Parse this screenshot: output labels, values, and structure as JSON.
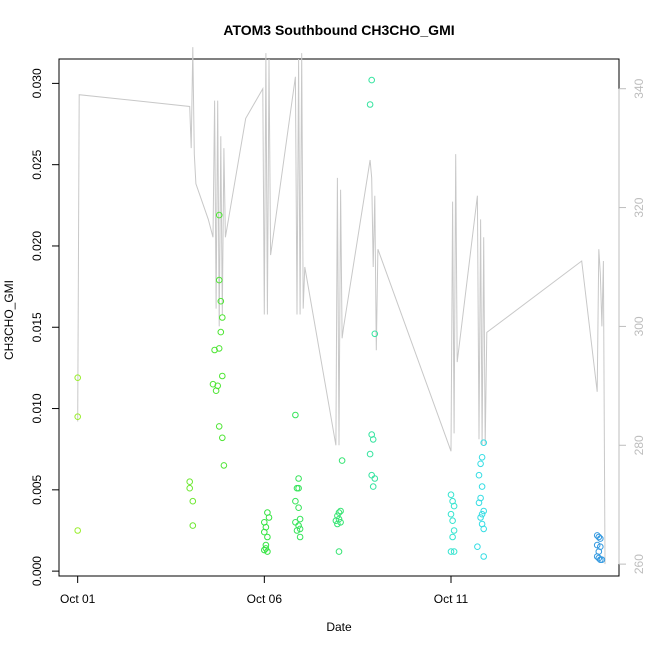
{
  "chart_data": {
    "type": "scatter",
    "title": "ATOM3 Southbound CH3CHO_GMI",
    "xlabel": "Date",
    "ylabel": "CH3CHO_GMI",
    "xlim": [
      "2017-09-30T12:00",
      "2017-10-15T12:00"
    ],
    "ylim": [
      -0.0003,
      0.0315
    ],
    "y2lim": [
      258,
      345
    ],
    "x_ticks": [
      {
        "value": "2017-10-01T00:00",
        "label": "Oct 01"
      },
      {
        "value": "2017-10-06T00:00",
        "label": "Oct 06"
      },
      {
        "value": "2017-10-11T00:00",
        "label": "Oct 11"
      }
    ],
    "y_ticks": [
      {
        "value": 0.0,
        "label": "0.000"
      },
      {
        "value": 0.005,
        "label": "0.005"
      },
      {
        "value": 0.01,
        "label": "0.010"
      },
      {
        "value": 0.015,
        "label": "0.015"
      },
      {
        "value": 0.02,
        "label": "0.020"
      },
      {
        "value": 0.025,
        "label": "0.025"
      },
      {
        "value": 0.03,
        "label": "0.030"
      }
    ],
    "y2_ticks": [
      {
        "value": 260,
        "label": "260"
      },
      {
        "value": 280,
        "label": "280"
      },
      {
        "value": 300,
        "label": "300"
      },
      {
        "value": 320,
        "label": "320"
      },
      {
        "value": 340,
        "label": "340"
      }
    ],
    "colors": {
      "line": "#c8c8c8",
      "axis": "#000000",
      "right_axis": "#bdbdbd"
    },
    "points": [
      {
        "x": "2017-10-01T00:00",
        "y": 0.0119,
        "color": "#9aee2e"
      },
      {
        "x": "2017-10-01T00:00",
        "y": 0.0095,
        "color": "#9aee2e"
      },
      {
        "x": "2017-10-01T00:00",
        "y": 0.0025,
        "color": "#9aee2e"
      },
      {
        "x": "2017-10-04T00:00",
        "y": 0.0055,
        "color": "#6ee832"
      },
      {
        "x": "2017-10-04T00:00",
        "y": 0.0051,
        "color": "#6ee832"
      },
      {
        "x": "2017-10-04T02:00",
        "y": 0.0043,
        "color": "#6ee832"
      },
      {
        "x": "2017-10-04T02:00",
        "y": 0.0028,
        "color": "#6ee832"
      },
      {
        "x": "2017-10-04T19:00",
        "y": 0.0219,
        "color": "#4ee534"
      },
      {
        "x": "2017-10-04T19:00",
        "y": 0.0179,
        "color": "#4ee534"
      },
      {
        "x": "2017-10-04T20:00",
        "y": 0.0166,
        "color": "#4ee534"
      },
      {
        "x": "2017-10-04T21:00",
        "y": 0.0156,
        "color": "#4ee534"
      },
      {
        "x": "2017-10-04T20:00",
        "y": 0.0147,
        "color": "#4ee534"
      },
      {
        "x": "2017-10-04T19:00",
        "y": 0.0137,
        "color": "#4ee534"
      },
      {
        "x": "2017-10-04T16:00",
        "y": 0.0136,
        "color": "#4ee534"
      },
      {
        "x": "2017-10-04T21:00",
        "y": 0.012,
        "color": "#4ee534"
      },
      {
        "x": "2017-10-04T15:00",
        "y": 0.0115,
        "color": "#4ee534"
      },
      {
        "x": "2017-10-04T17:00",
        "y": 0.0111,
        "color": "#4ee534"
      },
      {
        "x": "2017-10-04T18:00",
        "y": 0.0114,
        "color": "#4ee534"
      },
      {
        "x": "2017-10-04T19:00",
        "y": 0.0089,
        "color": "#4ee534"
      },
      {
        "x": "2017-10-04T21:00",
        "y": 0.0082,
        "color": "#4ee534"
      },
      {
        "x": "2017-10-04T22:00",
        "y": 0.0065,
        "color": "#4ee534"
      },
      {
        "x": "2017-10-06T02:00",
        "y": 0.0036,
        "color": "#36e443"
      },
      {
        "x": "2017-10-06T03:00",
        "y": 0.0033,
        "color": "#36e443"
      },
      {
        "x": "2017-10-06T00:00",
        "y": 0.003,
        "color": "#36e443"
      },
      {
        "x": "2017-10-06T01:00",
        "y": 0.0027,
        "color": "#36e443"
      },
      {
        "x": "2017-10-06T00:00",
        "y": 0.0024,
        "color": "#36e443"
      },
      {
        "x": "2017-10-06T02:00",
        "y": 0.0021,
        "color": "#36e443"
      },
      {
        "x": "2017-10-06T01:00",
        "y": 0.0016,
        "color": "#36e443"
      },
      {
        "x": "2017-10-06T00:00",
        "y": 0.0013,
        "color": "#36e443"
      },
      {
        "x": "2017-10-06T02:00",
        "y": 0.0012,
        "color": "#36e443"
      },
      {
        "x": "2017-10-06T01:00",
        "y": 0.0014,
        "color": "#36e443"
      },
      {
        "x": "2017-10-06T20:00",
        "y": 0.0096,
        "color": "#36e45a"
      },
      {
        "x": "2017-10-06T22:00",
        "y": 0.0057,
        "color": "#36e45a"
      },
      {
        "x": "2017-10-06T21:00",
        "y": 0.0051,
        "color": "#36e45a"
      },
      {
        "x": "2017-10-06T22:00",
        "y": 0.0051,
        "color": "#36e45a"
      },
      {
        "x": "2017-10-06T20:00",
        "y": 0.0043,
        "color": "#36e45a"
      },
      {
        "x": "2017-10-06T22:00",
        "y": 0.0039,
        "color": "#36e45a"
      },
      {
        "x": "2017-10-06T23:00",
        "y": 0.0032,
        "color": "#36e45a"
      },
      {
        "x": "2017-10-06T20:00",
        "y": 0.003,
        "color": "#36e45a"
      },
      {
        "x": "2017-10-06T22:00",
        "y": 0.0028,
        "color": "#36e45a"
      },
      {
        "x": "2017-10-06T21:00",
        "y": 0.0025,
        "color": "#36e45a"
      },
      {
        "x": "2017-10-06T23:00",
        "y": 0.0026,
        "color": "#36e45a"
      },
      {
        "x": "2017-10-06T23:00",
        "y": 0.0021,
        "color": "#36e45a"
      },
      {
        "x": "2017-10-08T00:00",
        "y": 0.0036,
        "color": "#36e473"
      },
      {
        "x": "2017-10-08T01:00",
        "y": 0.0037,
        "color": "#36e473"
      },
      {
        "x": "2017-10-07T23:00",
        "y": 0.0034,
        "color": "#36e473"
      },
      {
        "x": "2017-10-08T00:00",
        "y": 0.0032,
        "color": "#36e473"
      },
      {
        "x": "2017-10-07T22:00",
        "y": 0.0031,
        "color": "#36e473"
      },
      {
        "x": "2017-10-08T01:00",
        "y": 0.003,
        "color": "#36e473"
      },
      {
        "x": "2017-10-07T23:00",
        "y": 0.0029,
        "color": "#36e473"
      },
      {
        "x": "2017-10-08T02:00",
        "y": 0.0068,
        "color": "#36e473"
      },
      {
        "x": "2017-10-08T00:00",
        "y": 0.0012,
        "color": "#36e473"
      },
      {
        "x": "2017-10-08T21:00",
        "y": 0.0302,
        "color": "#36e4a0"
      },
      {
        "x": "2017-10-08T20:00",
        "y": 0.0287,
        "color": "#36e4a0"
      },
      {
        "x": "2017-10-08T23:00",
        "y": 0.0146,
        "color": "#36e4a0"
      },
      {
        "x": "2017-10-08T21:00",
        "y": 0.0084,
        "color": "#36e4a0"
      },
      {
        "x": "2017-10-08T22:00",
        "y": 0.0081,
        "color": "#36e4a0"
      },
      {
        "x": "2017-10-08T20:00",
        "y": 0.0072,
        "color": "#36e4a0"
      },
      {
        "x": "2017-10-08T21:00",
        "y": 0.0059,
        "color": "#36e4a0"
      },
      {
        "x": "2017-10-08T23:00",
        "y": 0.0057,
        "color": "#36e4a0"
      },
      {
        "x": "2017-10-08T22:00",
        "y": 0.0052,
        "color": "#36e4a0"
      },
      {
        "x": "2017-10-11T00:00",
        "y": 0.0047,
        "color": "#36e4d0"
      },
      {
        "x": "2017-10-11T01:00",
        "y": 0.0043,
        "color": "#36e4d0"
      },
      {
        "x": "2017-10-11T02:00",
        "y": 0.004,
        "color": "#36e4d0"
      },
      {
        "x": "2017-10-11T00:00",
        "y": 0.0035,
        "color": "#36e4d0"
      },
      {
        "x": "2017-10-11T01:00",
        "y": 0.0031,
        "color": "#36e4d0"
      },
      {
        "x": "2017-10-11T02:00",
        "y": 0.0025,
        "color": "#36e4d0"
      },
      {
        "x": "2017-10-11T01:00",
        "y": 0.0021,
        "color": "#36e4d0"
      },
      {
        "x": "2017-10-11T00:00",
        "y": 0.0012,
        "color": "#36e4d0"
      },
      {
        "x": "2017-10-11T02:00",
        "y": 0.0012,
        "color": "#36e4d0"
      },
      {
        "x": "2017-10-11T21:00",
        "y": 0.0079,
        "color": "#36dde4"
      },
      {
        "x": "2017-10-11T20:00",
        "y": 0.007,
        "color": "#36dde4"
      },
      {
        "x": "2017-10-11T19:00",
        "y": 0.0066,
        "color": "#36dde4"
      },
      {
        "x": "2017-10-11T18:00",
        "y": 0.0059,
        "color": "#36dde4"
      },
      {
        "x": "2017-10-11T20:00",
        "y": 0.0052,
        "color": "#36dde4"
      },
      {
        "x": "2017-10-11T19:00",
        "y": 0.0045,
        "color": "#36dde4"
      },
      {
        "x": "2017-10-11T18:00",
        "y": 0.0042,
        "color": "#36dde4"
      },
      {
        "x": "2017-10-11T21:00",
        "y": 0.0037,
        "color": "#36dde4"
      },
      {
        "x": "2017-10-11T20:00",
        "y": 0.0035,
        "color": "#36dde4"
      },
      {
        "x": "2017-10-11T19:00",
        "y": 0.0033,
        "color": "#36dde4"
      },
      {
        "x": "2017-10-11T20:00",
        "y": 0.0029,
        "color": "#36dde4"
      },
      {
        "x": "2017-10-11T21:00",
        "y": 0.0026,
        "color": "#36dde4"
      },
      {
        "x": "2017-10-11T17:00",
        "y": 0.0015,
        "color": "#36dde4"
      },
      {
        "x": "2017-10-11T21:00",
        "y": 0.0009,
        "color": "#36dde4"
      },
      {
        "x": "2017-10-14T22:00",
        "y": 0.0022,
        "color": "#3399e0"
      },
      {
        "x": "2017-10-14T23:00",
        "y": 0.0021,
        "color": "#3399e0"
      },
      {
        "x": "2017-10-15T00:00",
        "y": 0.002,
        "color": "#3399e0"
      },
      {
        "x": "2017-10-14T22:00",
        "y": 0.0016,
        "color": "#3399e0"
      },
      {
        "x": "2017-10-15T00:00",
        "y": 0.0015,
        "color": "#3399e0"
      },
      {
        "x": "2017-10-14T23:00",
        "y": 0.0012,
        "color": "#3399e0"
      },
      {
        "x": "2017-10-14T22:00",
        "y": 0.0009,
        "color": "#3399e0"
      },
      {
        "x": "2017-10-14T23:00",
        "y": 0.0008,
        "color": "#3399e0"
      },
      {
        "x": "2017-10-15T01:00",
        "y": 0.0007,
        "color": "#3399e0"
      },
      {
        "x": "2017-10-15T00:00",
        "y": 0.0007,
        "color": "#3399e0"
      }
    ],
    "line_y2": [
      [
        "2017-10-01T00:00",
        284
      ],
      [
        "2017-10-01T01:00",
        339
      ],
      [
        "2017-10-04T00:00",
        337
      ],
      [
        "2017-10-04T01:00",
        330
      ],
      [
        "2017-10-04T02:00",
        347
      ],
      [
        "2017-10-04T03:00",
        329
      ],
      [
        "2017-10-04T04:00",
        324
      ],
      [
        "2017-10-04T12:00",
        318
      ],
      [
        "2017-10-04T15:00",
        315
      ],
      [
        "2017-10-04T16:00",
        338
      ],
      [
        "2017-10-04T17:00",
        303
      ],
      [
        "2017-10-04T18:00",
        338
      ],
      [
        "2017-10-04T19:00",
        300
      ],
      [
        "2017-10-04T20:00",
        332
      ],
      [
        "2017-10-04T21:00",
        302
      ],
      [
        "2017-10-04T22:00",
        330
      ],
      [
        "2017-10-04T23:00",
        315
      ],
      [
        "2017-10-05T12:00",
        335
      ],
      [
        "2017-10-05T23:00",
        340
      ],
      [
        "2017-10-06T00:00",
        302
      ],
      [
        "2017-10-06T01:00",
        346
      ],
      [
        "2017-10-06T02:00",
        302
      ],
      [
        "2017-10-06T03:00",
        345
      ],
      [
        "2017-10-06T04:00",
        312
      ],
      [
        "2017-10-06T20:00",
        342
      ],
      [
        "2017-10-06T21:00",
        302
      ],
      [
        "2017-10-06T22:00",
        345
      ],
      [
        "2017-10-06T23:00",
        302
      ],
      [
        "2017-10-07T00:00",
        346
      ],
      [
        "2017-10-07T01:00",
        303
      ],
      [
        "2017-10-07T02:00",
        310
      ],
      [
        "2017-10-07T22:00",
        280
      ],
      [
        "2017-10-07T23:00",
        325
      ],
      [
        "2017-10-08T00:00",
        280
      ],
      [
        "2017-10-08T01:00",
        323
      ],
      [
        "2017-10-08T02:00",
        298
      ],
      [
        "2017-10-08T03:00",
        300
      ],
      [
        "2017-10-08T20:00",
        328
      ],
      [
        "2017-10-08T21:00",
        325
      ],
      [
        "2017-10-08T22:00",
        310
      ],
      [
        "2017-10-08T23:00",
        322
      ],
      [
        "2017-10-09T00:00",
        296
      ],
      [
        "2017-10-09T01:00",
        313
      ],
      [
        "2017-10-11T00:00",
        279
      ],
      [
        "2017-10-11T01:00",
        321
      ],
      [
        "2017-10-11T02:00",
        282
      ],
      [
        "2017-10-11T03:00",
        329
      ],
      [
        "2017-10-11T04:00",
        294
      ],
      [
        "2017-10-11T17:00",
        322
      ],
      [
        "2017-10-11T18:00",
        281
      ],
      [
        "2017-10-11T19:00",
        318
      ],
      [
        "2017-10-11T20:00",
        280
      ],
      [
        "2017-10-11T21:00",
        315
      ],
      [
        "2017-10-11T22:00",
        280
      ],
      [
        "2017-10-11T23:00",
        299
      ],
      [
        "2017-10-14T12:00",
        311
      ],
      [
        "2017-10-14T22:00",
        289
      ],
      [
        "2017-10-14T23:00",
        313
      ],
      [
        "2017-10-15T00:00",
        309
      ],
      [
        "2017-10-15T01:00",
        300
      ],
      [
        "2017-10-15T02:00",
        311
      ],
      [
        "2017-10-15T03:00",
        260
      ]
    ]
  }
}
